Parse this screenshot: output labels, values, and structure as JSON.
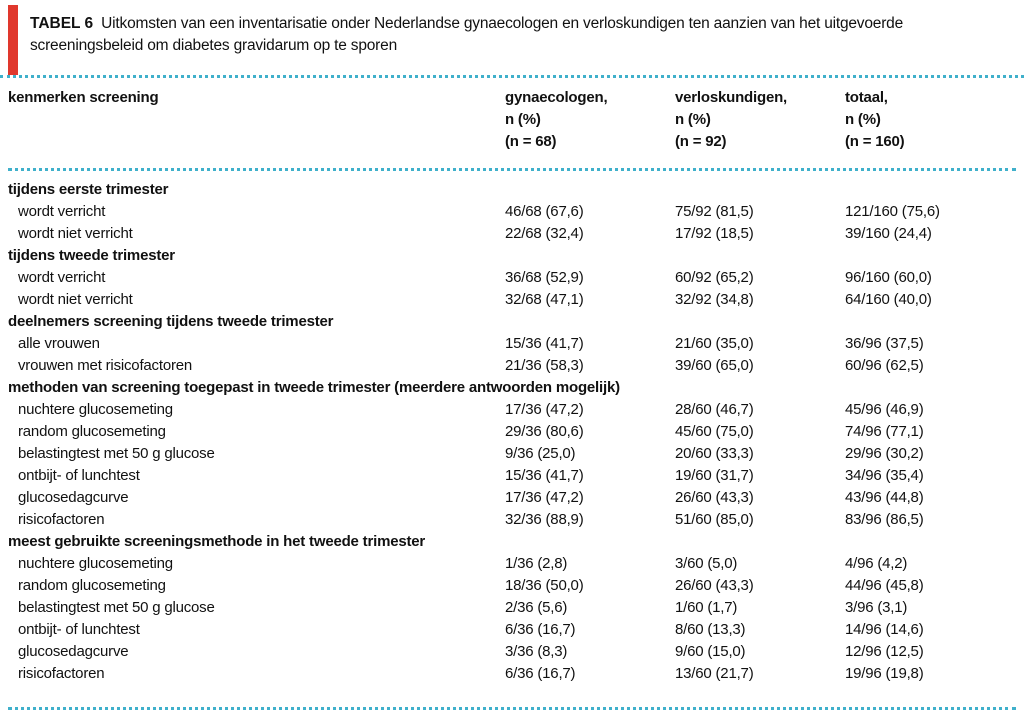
{
  "colors": {
    "accent_red": "#e0382d",
    "rule_cyan": "#3fb0cb",
    "text": "#111111"
  },
  "title": {
    "label": "TABEL 6",
    "lines": [
      "Uitkomsten van een inventarisatie onder Nederlandse gynaecologen en verloskundigen ten aanzien van het uitgevoerde",
      "screeningsbeleid om diabetes gravidarum op te sporen"
    ]
  },
  "table": {
    "header": {
      "col1": "kenmerken screening",
      "cols": [
        {
          "lines": [
            "gynaecologen,",
            "n (%)",
            "(n = 68)"
          ]
        },
        {
          "lines": [
            "verloskundigen,",
            "n (%)",
            "(n = 92)"
          ]
        },
        {
          "lines": [
            "totaal,",
            "n (%)",
            "(n = 160)"
          ]
        }
      ]
    },
    "rows": [
      {
        "type": "section",
        "label": "tijdens eerste trimester"
      },
      {
        "type": "item",
        "label": "wordt verricht",
        "values": [
          "46/68 (67,6)",
          "75/92 (81,5)",
          "121/160 (75,6)"
        ]
      },
      {
        "type": "item",
        "label": "wordt niet verricht",
        "values": [
          "22/68 (32,4)",
          "17/92 (18,5)",
          "39/160 (24,4)"
        ]
      },
      {
        "type": "section",
        "label": "tijdens tweede trimester"
      },
      {
        "type": "item",
        "label": "wordt verricht",
        "values": [
          "36/68 (52,9)",
          "60/92 (65,2)",
          "96/160 (60,0)"
        ]
      },
      {
        "type": "item",
        "label": "wordt niet verricht",
        "values": [
          "32/68 (47,1)",
          "32/92 (34,8)",
          "64/160 (40,0)"
        ]
      },
      {
        "type": "section",
        "label": "deelnemers screening tijdens tweede trimester"
      },
      {
        "type": "item",
        "label": "alle vrouwen",
        "values": [
          "15/36 (41,7)",
          "21/60 (35,0)",
          "36/96 (37,5)"
        ]
      },
      {
        "type": "item",
        "label": "vrouwen met risicofactoren",
        "values": [
          "21/36 (58,3)",
          "39/60 (65,0)",
          "60/96 (62,5)"
        ]
      },
      {
        "type": "section",
        "label": "methoden van screening toegepast in tweede trimester (meerdere antwoorden mogelijk)"
      },
      {
        "type": "item",
        "label": "nuchtere glucosemeting",
        "values": [
          "17/36 (47,2)",
          "28/60 (46,7)",
          "45/96 (46,9)"
        ]
      },
      {
        "type": "item",
        "label": "random glucosemeting",
        "values": [
          "29/36 (80,6)",
          "45/60 (75,0)",
          "74/96 (77,1)"
        ]
      },
      {
        "type": "item",
        "label": "belastingtest met 50 g glucose",
        "values": [
          "9/36 (25,0)",
          "20/60 (33,3)",
          "29/96 (30,2)"
        ]
      },
      {
        "type": "item",
        "label": "ontbijt- of lunchtest",
        "values": [
          "15/36 (41,7)",
          "19/60 (31,7)",
          "34/96 (35,4)"
        ]
      },
      {
        "type": "item",
        "label": "glucosedagcurve",
        "values": [
          "17/36 (47,2)",
          "26/60 (43,3)",
          "43/96 (44,8)"
        ]
      },
      {
        "type": "item",
        "label": "risicofactoren",
        "values": [
          "32/36 (88,9)",
          "51/60 (85,0)",
          "83/96 (86,5)"
        ]
      },
      {
        "type": "section",
        "label": "meest gebruikte screeningsmethode in het tweede trimester"
      },
      {
        "type": "item",
        "label": "nuchtere glucosemeting",
        "values": [
          "1/36 (2,8)",
          "3/60 (5,0)",
          "4/96 (4,2)"
        ]
      },
      {
        "type": "item",
        "label": "random glucosemeting",
        "values": [
          "18/36 (50,0)",
          "26/60 (43,3)",
          "44/96 (45,8)"
        ]
      },
      {
        "type": "item",
        "label": "belastingtest met 50 g glucose",
        "values": [
          "2/36 (5,6)",
          "1/60 (1,7)",
          "3/96 (3,1)"
        ]
      },
      {
        "type": "item",
        "label": "ontbijt- of lunchtest",
        "values": [
          "6/36 (16,7)",
          "8/60 (13,3)",
          "14/96 (14,6)"
        ]
      },
      {
        "type": "item",
        "label": "glucosedagcurve",
        "values": [
          "3/36 (8,3)",
          "9/60 (15,0)",
          "12/96 (12,5)"
        ]
      },
      {
        "type": "item",
        "label": "risicofactoren",
        "values": [
          "6/36 (16,7)",
          "13/60 (21,7)",
          "19/96 (19,8)"
        ]
      }
    ]
  }
}
